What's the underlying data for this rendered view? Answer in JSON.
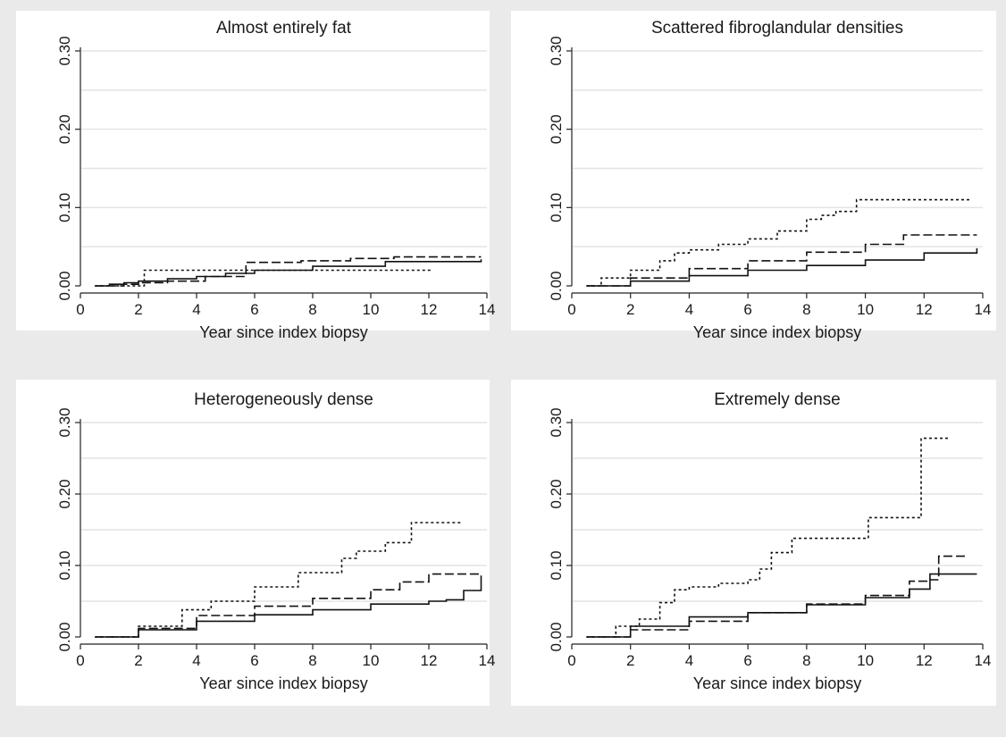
{
  "chart_data": [
    {
      "type": "line",
      "title": "Almost entirely fat",
      "xlabel": "Year since index biopsy",
      "ylabel": "",
      "xlim": [
        0,
        14
      ],
      "ylim": [
        0,
        0.3
      ],
      "xticks": [
        0,
        2,
        4,
        6,
        8,
        10,
        12,
        14
      ],
      "yticks": [
        0.0,
        0.1,
        0.2,
        0.3
      ],
      "ytick_labels": [
        "0.00",
        "0.10",
        "0.20",
        "0.30"
      ],
      "grid": true,
      "series": [
        {
          "style": "solid",
          "x": [
            0.5,
            1,
            1.5,
            2,
            3,
            4,
            5,
            6,
            8,
            10.5,
            13.8
          ],
          "y": [
            0,
            0.002,
            0.004,
            0.006,
            0.009,
            0.012,
            0.016,
            0.02,
            0.025,
            0.031,
            0.034
          ]
        },
        {
          "style": "dashed",
          "x": [
            0.5,
            1.5,
            2,
            3,
            4.3,
            5.7,
            7.6,
            9.3,
            10.8,
            13.8
          ],
          "y": [
            0,
            0.002,
            0.004,
            0.006,
            0.012,
            0.03,
            0.032,
            0.035,
            0.037,
            0.037
          ]
        },
        {
          "style": "dotted",
          "x": [
            0.5,
            2.2,
            5,
            6.5,
            12.1
          ],
          "y": [
            0,
            0.02,
            0.02,
            0.02,
            0.02
          ]
        }
      ]
    },
    {
      "type": "line",
      "title": "Scattered fibroglandular densities",
      "xlabel": "Year since index biopsy",
      "ylabel": "",
      "xlim": [
        0,
        14
      ],
      "ylim": [
        0,
        0.3
      ],
      "xticks": [
        0,
        2,
        4,
        6,
        8,
        10,
        12,
        14
      ],
      "yticks": [
        0.0,
        0.1,
        0.2,
        0.3
      ],
      "ytick_labels": [
        "0.00",
        "0.10",
        "0.20",
        "0.30"
      ],
      "grid": true,
      "series": [
        {
          "style": "solid",
          "x": [
            0.5,
            2,
            4,
            6,
            8,
            10,
            12,
            13.8
          ],
          "y": [
            0,
            0.006,
            0.013,
            0.02,
            0.026,
            0.033,
            0.042,
            0.048
          ]
        },
        {
          "style": "dashed",
          "x": [
            0.5,
            2,
            4,
            6,
            8,
            10,
            11.3,
            13.8
          ],
          "y": [
            0,
            0.01,
            0.022,
            0.032,
            0.043,
            0.053,
            0.065,
            0.065
          ]
        },
        {
          "style": "dotted",
          "x": [
            0.5,
            1,
            2,
            3,
            3.5,
            4,
            5,
            6,
            7,
            8,
            8.5,
            9,
            9.7,
            13.6
          ],
          "y": [
            0,
            0.01,
            0.02,
            0.032,
            0.042,
            0.046,
            0.053,
            0.06,
            0.07,
            0.085,
            0.09,
            0.095,
            0.11,
            0.11
          ]
        }
      ]
    },
    {
      "type": "line",
      "title": "Heterogeneously dense",
      "xlabel": "Year since index biopsy",
      "ylabel": "",
      "xlim": [
        0,
        14
      ],
      "ylim": [
        0,
        0.3
      ],
      "xticks": [
        0,
        2,
        4,
        6,
        8,
        10,
        12,
        14
      ],
      "yticks": [
        0.0,
        0.1,
        0.2,
        0.3
      ],
      "ytick_labels": [
        "0.00",
        "0.10",
        "0.20",
        "0.30"
      ],
      "grid": true,
      "series": [
        {
          "style": "solid",
          "x": [
            0.5,
            2,
            4,
            6,
            8,
            10,
            12,
            12.6,
            13.2,
            13.8
          ],
          "y": [
            0,
            0.01,
            0.022,
            0.031,
            0.038,
            0.046,
            0.05,
            0.052,
            0.065,
            0.086
          ]
        },
        {
          "style": "dashed",
          "x": [
            0.5,
            2,
            4,
            6,
            8,
            10,
            11,
            12,
            13.8
          ],
          "y": [
            0,
            0.012,
            0.03,
            0.043,
            0.054,
            0.066,
            0.077,
            0.088,
            0.088
          ]
        },
        {
          "style": "dotted",
          "x": [
            0.5,
            2,
            3.5,
            4.5,
            6,
            7.5,
            9,
            9.5,
            10.5,
            11.4,
            13.1
          ],
          "y": [
            0,
            0.015,
            0.038,
            0.05,
            0.07,
            0.09,
            0.11,
            0.12,
            0.132,
            0.16,
            0.16
          ]
        }
      ]
    },
    {
      "type": "line",
      "title": "Extremely dense",
      "xlabel": "Year since index biopsy",
      "ylabel": "",
      "xlim": [
        0,
        14
      ],
      "ylim": [
        0,
        0.3
      ],
      "xticks": [
        0,
        2,
        4,
        6,
        8,
        10,
        12,
        14
      ],
      "yticks": [
        0.0,
        0.1,
        0.2,
        0.3
      ],
      "ytick_labels": [
        "0.00",
        "0.10",
        "0.20",
        "0.30"
      ],
      "grid": true,
      "series": [
        {
          "style": "solid",
          "x": [
            0.5,
            2,
            4,
            6,
            8,
            10,
            11.5,
            12.2,
            13.8
          ],
          "y": [
            0,
            0.015,
            0.028,
            0.034,
            0.045,
            0.055,
            0.067,
            0.088,
            0.088
          ]
        },
        {
          "style": "dashed",
          "x": [
            0.5,
            2,
            4,
            6,
            8,
            10,
            11.5,
            12.2,
            12.5,
            13.4
          ],
          "y": [
            0,
            0.01,
            0.022,
            0.034,
            0.046,
            0.058,
            0.078,
            0.08,
            0.113,
            0.113
          ]
        },
        {
          "style": "dotted",
          "x": [
            0.5,
            1.5,
            2.3,
            3,
            3.5,
            4,
            5,
            6,
            6.4,
            6.8,
            7.5,
            10,
            10.1,
            11.8,
            11.9,
            12.9
          ],
          "y": [
            0,
            0.015,
            0.025,
            0.048,
            0.066,
            0.07,
            0.075,
            0.08,
            0.095,
            0.118,
            0.138,
            0.138,
            0.167,
            0.167,
            0.278,
            0.278
          ]
        }
      ]
    }
  ]
}
